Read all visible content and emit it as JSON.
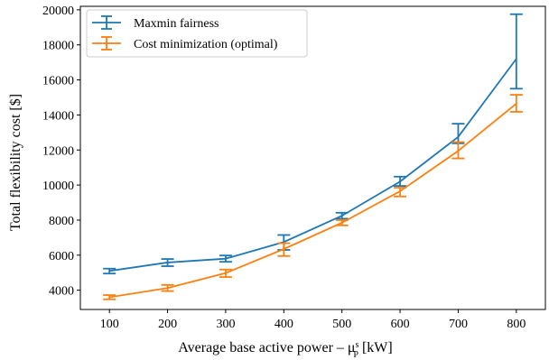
{
  "chart_data": {
    "type": "line",
    "title": "",
    "xlabel": "Average base active power – μ",
    "xlabel_sup": "s",
    "xlabel_sub": "P",
    "xlabel_unit": " [kW]",
    "ylabel": "Total flexibility cost [$]",
    "x": [
      100,
      200,
      300,
      400,
      500,
      600,
      700,
      800
    ],
    "xlim": [
      50,
      850
    ],
    "ylim": [
      2900,
      20200
    ],
    "xticks": [
      100,
      200,
      300,
      400,
      500,
      600,
      700,
      800
    ],
    "yticks": [
      4000,
      6000,
      8000,
      10000,
      12000,
      14000,
      16000,
      18000,
      20000
    ],
    "grid": false,
    "legend_position": "top-left",
    "series": [
      {
        "name": "Maxmin fairness",
        "color": "#1f77b4",
        "values": [
          5100,
          5580,
          5800,
          6750,
          8250,
          10200,
          12750,
          17200
        ],
        "err_low": [
          4950,
          5370,
          5620,
          6300,
          8080,
          9950,
          12380,
          15500
        ],
        "err_high": [
          5230,
          5780,
          5980,
          7150,
          8420,
          10480,
          13500,
          19750
        ]
      },
      {
        "name": "Cost minimization (optimal)",
        "color": "#ff7f0e",
        "values": [
          3600,
          4120,
          4980,
          6350,
          7850,
          9650,
          11950,
          14650
        ],
        "err_low": [
          3480,
          3950,
          4750,
          5950,
          7700,
          9350,
          11520,
          14180
        ],
        "err_high": [
          3720,
          4300,
          5180,
          6680,
          8000,
          9850,
          12450,
          15150
        ]
      }
    ]
  }
}
